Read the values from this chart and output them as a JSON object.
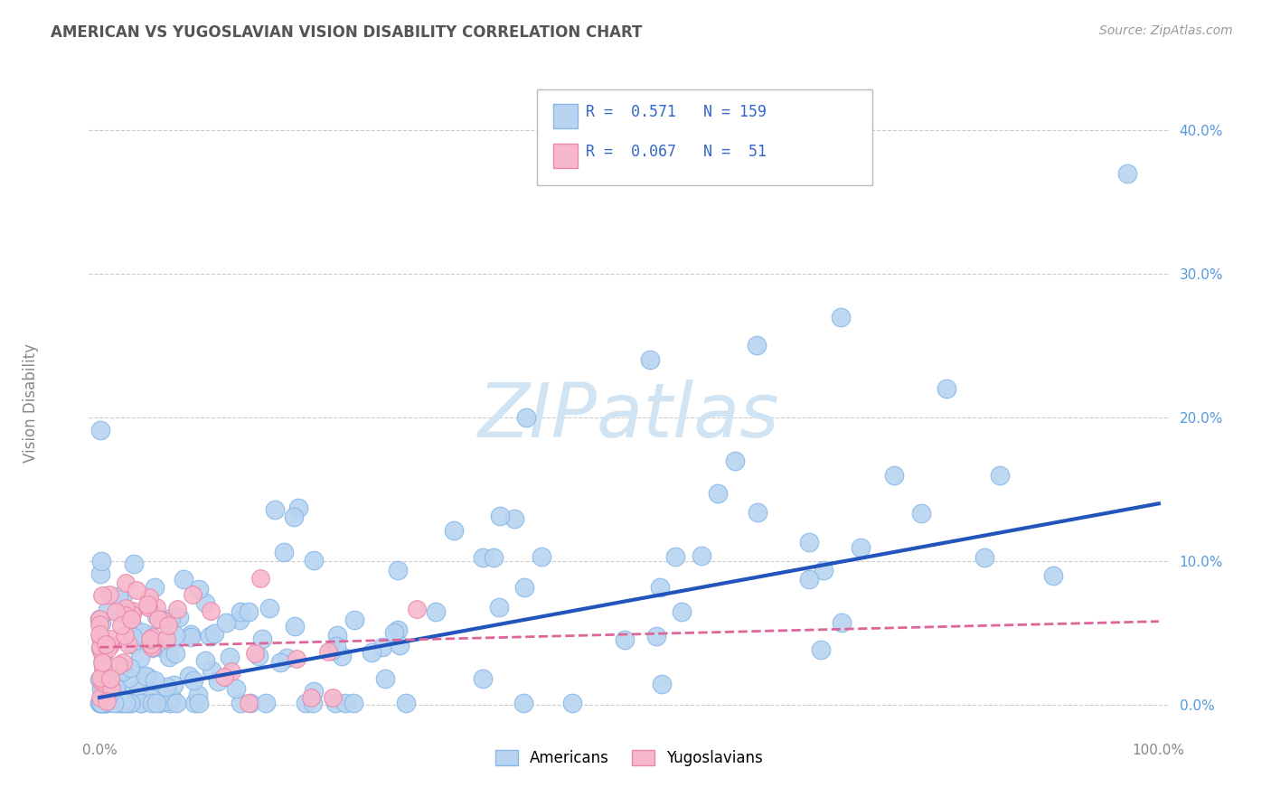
{
  "title": "AMERICAN VS YUGOSLAVIAN VISION DISABILITY CORRELATION CHART",
  "source": "Source: ZipAtlas.com",
  "ylabel": "Vision Disability",
  "xlim": [
    -0.01,
    1.01
  ],
  "ylim": [
    -0.02,
    0.44
  ],
  "xtick_positions": [
    0.0,
    1.0
  ],
  "xtick_labels": [
    "0.0%",
    "100.0%"
  ],
  "ytick_positions": [
    0.0,
    0.1,
    0.2,
    0.3,
    0.4
  ],
  "ytick_labels": [
    "0.0%",
    "10.0%",
    "20.0%",
    "30.0%",
    "40.0%"
  ],
  "legend_r_american": "0.571",
  "legend_n_american": "159",
  "legend_r_yugoslavian": "0.067",
  "legend_n_yugoslavian": " 51",
  "american_color": "#b8d4f0",
  "american_edge_color": "#88b8e8",
  "yugoslavian_color": "#f8b8cc",
  "yugoslavian_edge_color": "#e888aa",
  "trend_american_color": "#2255bb",
  "trend_yugoslavian_color": "#dd6699",
  "background_color": "#ffffff",
  "grid_color": "#cccccc",
  "title_color": "#555555",
  "source_color": "#999999",
  "ytick_color": "#5599dd",
  "watermark_color": "#d0e4f4"
}
